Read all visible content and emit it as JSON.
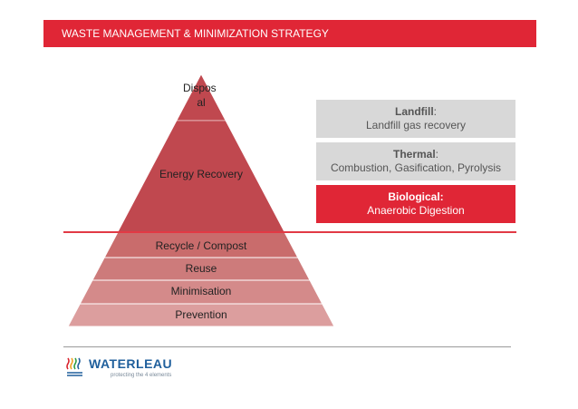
{
  "header": {
    "title": "WASTE MANAGEMENT & MINIMIZATION STRATEGY"
  },
  "pyramid": {
    "tiers": [
      {
        "label_lines": [
          "Dispos",
          "al"
        ],
        "color": "#c0484f"
      },
      {
        "label_lines": [
          "Energy Recovery"
        ],
        "color": "#c0484f"
      },
      {
        "label_lines": [
          "Recycle / Compost"
        ],
        "color": "#c96c6c"
      },
      {
        "label_lines": [
          "Reuse"
        ],
        "color": "#cd7b7b"
      },
      {
        "label_lines": [
          "Minimisation"
        ],
        "color": "#d48a8a"
      },
      {
        "label_lines": [
          "Prevention"
        ],
        "color": "#dc9e9e"
      }
    ]
  },
  "options": [
    {
      "title": "Landfill",
      "suffix": ":",
      "detail": "Landfill gas recovery",
      "style": "grey"
    },
    {
      "title": "Thermal",
      "suffix": ":",
      "detail": "Combustion, Gasification, Pyrolysis",
      "style": "grey"
    },
    {
      "title": "Biological:",
      "suffix": "",
      "detail": "Anaerobic Digestion",
      "style": "red"
    }
  ],
  "footer": {
    "logo_name": "WATERLEAU",
    "logo_tagline": "protecting the 4 elements",
    "logo_icon": "waterleau-waves-icon"
  }
}
